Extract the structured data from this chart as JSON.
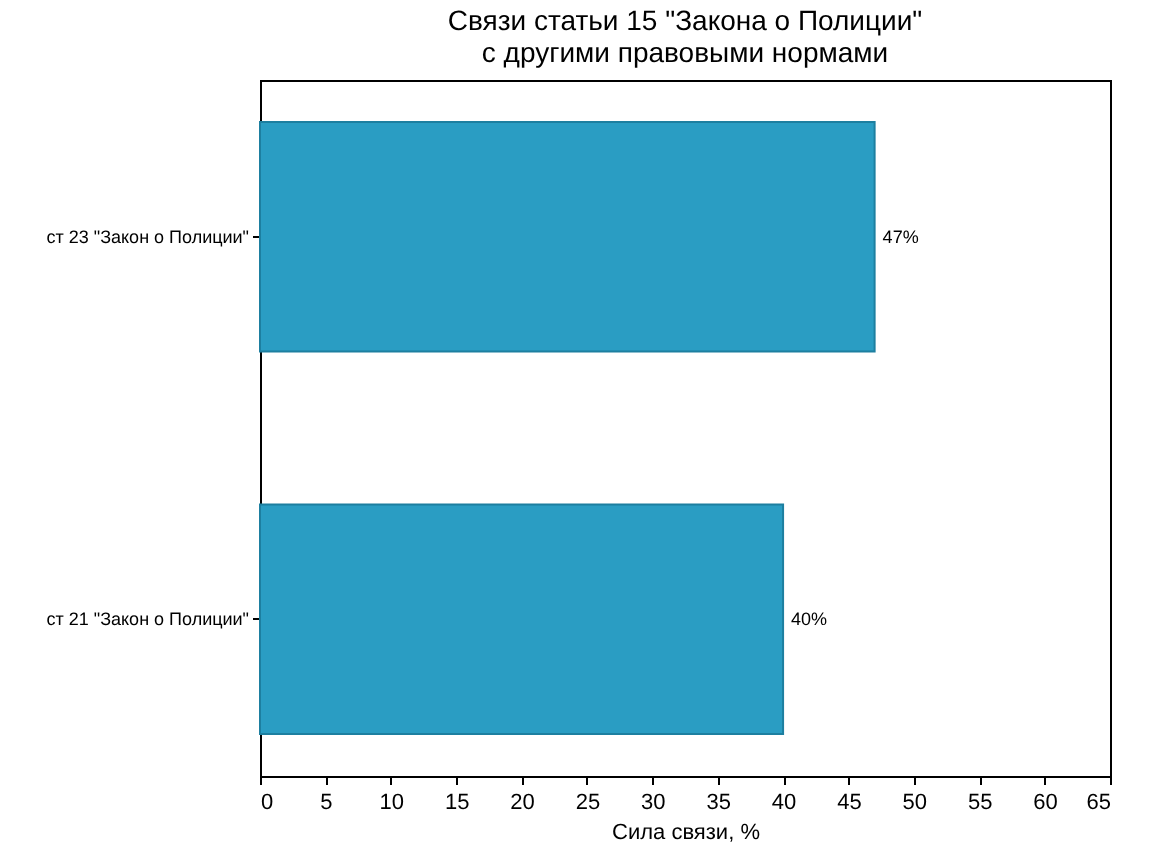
{
  "chart_data": {
    "type": "bar",
    "orientation": "horizontal",
    "title": "Связи статьи 15 \"Закона о Полиции\"\nс другими правовыми нормами",
    "xlabel": "Сила связи, %",
    "categories": [
      "ст 23 \"Закон о Полиции\"",
      "ст 21 \"Закон о Полиции\""
    ],
    "values": [
      47,
      40
    ],
    "value_labels": [
      "47%",
      "40%"
    ],
    "color": "#2a9dc3",
    "xlim": [
      0,
      65
    ],
    "xticks": [
      0,
      5,
      10,
      15,
      20,
      25,
      30,
      35,
      40,
      45,
      50,
      55,
      60,
      65
    ],
    "grid": false
  }
}
